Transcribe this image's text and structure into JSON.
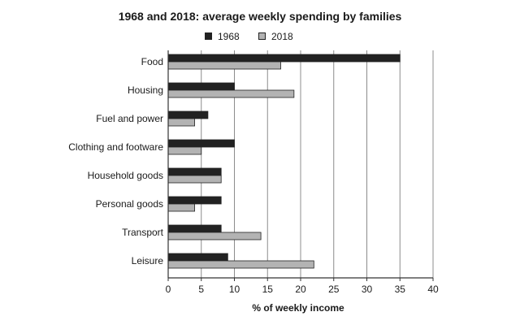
{
  "chart_data": {
    "type": "bar",
    "orientation": "horizontal",
    "title": "1968 and 2018: average weekly spending by families",
    "xlabel": "% of weekly income",
    "ylabel": "",
    "xlim": [
      0,
      40
    ],
    "xticks": [
      0,
      5,
      10,
      15,
      20,
      25,
      30,
      35,
      40
    ],
    "grid": true,
    "legend_placement": "top",
    "categories": [
      "Food",
      "Housing",
      "Fuel and power",
      "Clothing and footware",
      "Household goods",
      "Personal goods",
      "Transport",
      "Leisure"
    ],
    "series": [
      {
        "name": "1968",
        "color": "#222222",
        "values": [
          35,
          10,
          6,
          10,
          8,
          8,
          8,
          9
        ]
      },
      {
        "name": "2018",
        "color": "#b3b3b3",
        "values": [
          17,
          19,
          4,
          5,
          8,
          4,
          14,
          22
        ]
      }
    ]
  }
}
